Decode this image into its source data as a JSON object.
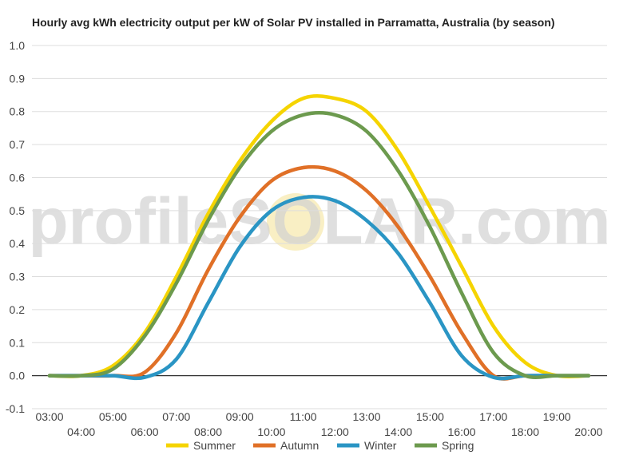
{
  "chart_data": {
    "type": "line",
    "title": "Hourly avg kWh electricity output per kW of Solar PV installed in Parramatta, Australia (by season)",
    "watermark": "profileSOLAR.com",
    "ylim": [
      -0.1,
      1.0
    ],
    "y_ticks": [
      "1.0",
      "0.9",
      "0.8",
      "0.7",
      "0.6",
      "0.5",
      "0.4",
      "0.3",
      "0.2",
      "0.1",
      "0.0",
      "-0.1"
    ],
    "y_tick_values": [
      1.0,
      0.9,
      0.8,
      0.7,
      0.6,
      0.5,
      0.4,
      0.3,
      0.2,
      0.1,
      0.0,
      -0.1
    ],
    "x": [
      "03:00",
      "04:00",
      "05:00",
      "06:00",
      "07:00",
      "08:00",
      "09:00",
      "10:00",
      "11:00",
      "12:00",
      "13:00",
      "14:00",
      "15:00",
      "16:00",
      "17:00",
      "18:00",
      "19:00",
      "20:00"
    ],
    "grid": true,
    "legend_position": "bottom",
    "series": [
      {
        "name": "Summer",
        "color": "#f5d400",
        "values": [
          0.0,
          0.0,
          0.03,
          0.13,
          0.3,
          0.49,
          0.65,
          0.77,
          0.84,
          0.84,
          0.8,
          0.68,
          0.51,
          0.33,
          0.15,
          0.04,
          0.0,
          0.0
        ]
      },
      {
        "name": "Autumn",
        "color": "#e07027",
        "values": [
          0.0,
          0.0,
          0.0,
          0.01,
          0.13,
          0.32,
          0.48,
          0.59,
          0.63,
          0.62,
          0.56,
          0.45,
          0.3,
          0.13,
          0.0,
          0.0,
          0.0,
          0.0
        ]
      },
      {
        "name": "Winter",
        "color": "#2a95c4",
        "values": [
          0.0,
          0.0,
          0.0,
          -0.005,
          0.05,
          0.22,
          0.39,
          0.5,
          0.54,
          0.53,
          0.47,
          0.37,
          0.22,
          0.06,
          -0.005,
          0.0,
          0.0,
          0.0
        ]
      },
      {
        "name": "Spring",
        "color": "#6c9a4e",
        "values": [
          0.0,
          0.0,
          0.02,
          0.12,
          0.28,
          0.47,
          0.63,
          0.74,
          0.79,
          0.79,
          0.74,
          0.62,
          0.45,
          0.25,
          0.07,
          0.0,
          0.0,
          0.0
        ]
      }
    ]
  }
}
